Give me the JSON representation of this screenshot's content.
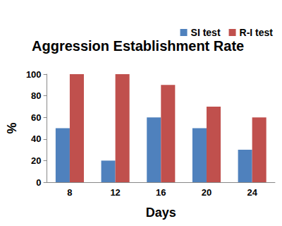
{
  "chart_data": {
    "type": "bar",
    "title": "Aggression Establishment Rate",
    "x_label": "Days",
    "y_label": "%",
    "categories": [
      "8",
      "12",
      "16",
      "20",
      "24"
    ],
    "series": [
      {
        "name": "SI test",
        "color": "#4f81bd",
        "values": [
          50,
          20,
          60,
          50,
          30
        ]
      },
      {
        "name": "R-I test",
        "color": "#c0504d",
        "values": [
          100,
          100,
          90,
          70,
          60
        ]
      }
    ],
    "ylim": [
      0,
      100
    ],
    "yticks": [
      0,
      20,
      40,
      60,
      80,
      100
    ],
    "grid": false,
    "legend": "top-right"
  }
}
